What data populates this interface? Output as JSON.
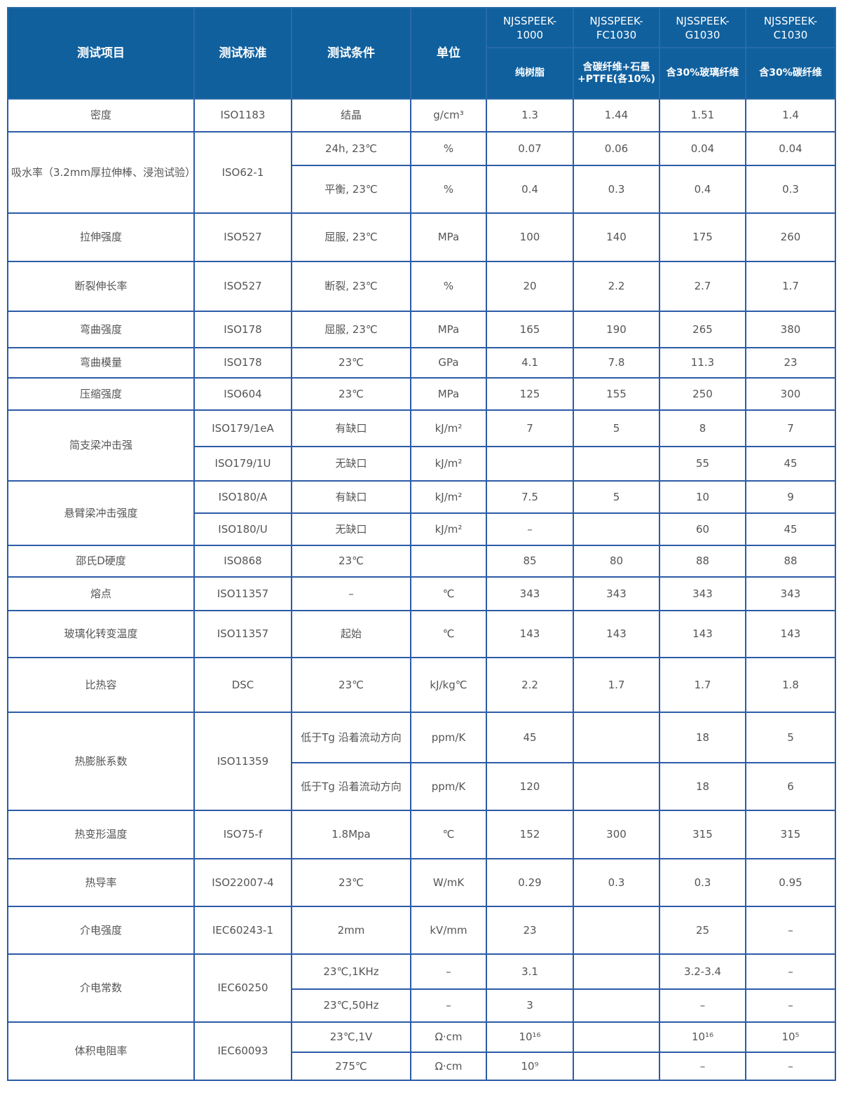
{
  "header": {
    "item": "测试项目",
    "standard": "测试标准",
    "condition": "测试条件",
    "unit": "单位",
    "products": [
      {
        "model": "NJSSPEEK-1000",
        "desc": "纯树脂"
      },
      {
        "model": "NJSSPEEK-FC1030",
        "desc": "含碳纤维+石墨+PTFE(各10%)"
      },
      {
        "model": "NJSSPEEK-G1030",
        "desc": "含30%玻璃纤维"
      },
      {
        "model": "NJSSPEEK-C1030",
        "desc": "含30%碳纤维"
      }
    ]
  },
  "colors": {
    "header_bg": "#10609e",
    "border": "#2c5ba6",
    "text": "#555555"
  },
  "rows": [
    {
      "item": "密度",
      "standard": "ISO1183",
      "sub": [
        {
          "cond": "结晶",
          "unit": "g/cm³",
          "vals": [
            "1.3",
            "1.44",
            "1.51",
            "1.4"
          ]
        }
      ]
    },
    {
      "item": "吸水率（3.2mm厚拉伸棒、浸泡试验）",
      "standard": "ISO62-1",
      "sub": [
        {
          "cond": "24h, 23℃",
          "unit": "%",
          "vals": [
            "0.07",
            "0.06",
            "0.04",
            "0.04"
          ]
        },
        {
          "cond": "平衡, 23℃",
          "unit": "%",
          "vals": [
            "0.4",
            "0.3",
            "0.4",
            "0.3"
          ]
        }
      ]
    },
    {
      "item": "拉伸强度",
      "standard": "ISO527",
      "sub": [
        {
          "cond": "屈服, 23℃",
          "unit": "MPa",
          "vals": [
            "100",
            "140",
            "175",
            "260"
          ]
        }
      ]
    },
    {
      "item": "断裂伸长率",
      "standard": "ISO527",
      "sub": [
        {
          "cond": "断裂, 23℃",
          "unit": "%",
          "vals": [
            "20",
            "2.2",
            "2.7",
            "1.7"
          ]
        }
      ]
    },
    {
      "item": "弯曲强度",
      "standard": "ISO178",
      "sub": [
        {
          "cond": "屈服, 23℃",
          "unit": "MPa",
          "vals": [
            "165",
            "190",
            "265",
            "380"
          ]
        }
      ]
    },
    {
      "item": "弯曲模量",
      "standard": "ISO178",
      "sub": [
        {
          "cond": "23℃",
          "unit": "GPa",
          "vals": [
            "4.1",
            "7.8",
            "11.3",
            "23"
          ]
        }
      ]
    },
    {
      "item": "压缩强度",
      "standard": "ISO604",
      "sub": [
        {
          "cond": "23℃",
          "unit": "MPa",
          "vals": [
            "125",
            "155",
            "250",
            "300"
          ]
        }
      ]
    },
    {
      "item": "简支梁冲击强",
      "standard": "",
      "sub": [
        {
          "std": "ISO179/1eA",
          "cond": "有缺口",
          "unit": "kJ/m²",
          "vals": [
            "7",
            "5",
            "8",
            "7"
          ]
        },
        {
          "std": "ISO179/1U",
          "cond": "无缺口",
          "unit": "kJ/m²",
          "vals": [
            "",
            "",
            "55",
            "45"
          ]
        }
      ]
    },
    {
      "item": "悬臂梁冲击强度",
      "standard": "",
      "sub": [
        {
          "std": "ISO180/A",
          "cond": "有缺口",
          "unit": "kJ/m²",
          "vals": [
            "7.5",
            "5",
            "10",
            "9"
          ]
        },
        {
          "std": "ISO180/U",
          "cond": "无缺口",
          "unit": "kJ/m²",
          "vals": [
            "–",
            "",
            "60",
            "45"
          ]
        }
      ]
    },
    {
      "item": "邵氏D硬度",
      "standard": "ISO868",
      "sub": [
        {
          "cond": "23℃",
          "unit": "",
          "vals": [
            "85",
            "80",
            "88",
            "88"
          ]
        }
      ]
    },
    {
      "item": "熔点",
      "standard": "ISO11357",
      "sub": [
        {
          "cond": "–",
          "unit": "℃",
          "vals": [
            "343",
            "343",
            "343",
            "343"
          ]
        }
      ]
    },
    {
      "item": "玻璃化转变温度",
      "standard": "ISO11357",
      "sub": [
        {
          "cond": "起始",
          "unit": "℃",
          "vals": [
            "143",
            "143",
            "143",
            "143"
          ]
        }
      ]
    },
    {
      "item": "比热容",
      "standard": "DSC",
      "sub": [
        {
          "cond": "23℃",
          "unit": "kJ/kg℃",
          "vals": [
            "2.2",
            "1.7",
            "1.7",
            "1.8"
          ]
        }
      ]
    },
    {
      "item": "热膨胀系数",
      "standard": "ISO11359",
      "sub": [
        {
          "cond": "低于Tg 沿着流动方向",
          "unit": "ppm/K",
          "vals": [
            "45",
            "",
            "18",
            "5"
          ]
        },
        {
          "cond": "低于Tg 沿着流动方向",
          "unit": "ppm/K",
          "vals": [
            "120",
            "",
            "18",
            "6"
          ]
        }
      ]
    },
    {
      "item": "热变形温度",
      "standard": "ISO75-f",
      "sub": [
        {
          "cond": "1.8Mpa",
          "unit": "℃",
          "vals": [
            "152",
            "300",
            "315",
            "315"
          ]
        }
      ]
    },
    {
      "item": "热导率",
      "standard": "ISO22007-4",
      "sub": [
        {
          "cond": "23℃",
          "unit": "W/mK",
          "vals": [
            "0.29",
            "0.3",
            "0.3",
            "0.95"
          ]
        }
      ]
    },
    {
      "item": "介电强度",
      "standard": "IEC60243-1",
      "sub": [
        {
          "cond": "2mm",
          "unit": "kV/mm",
          "vals": [
            "23",
            "",
            "25",
            "–"
          ]
        }
      ]
    },
    {
      "item": "介电常数",
      "standard": "IEC60250",
      "sub": [
        {
          "cond": "23℃,1KHz",
          "unit": "–",
          "vals": [
            "3.1",
            "",
            "3.2-3.4",
            "–"
          ]
        },
        {
          "cond": "23℃,50Hz",
          "unit": "–",
          "vals": [
            "3",
            "",
            "–",
            "–"
          ]
        }
      ]
    },
    {
      "item": "体积电阻率",
      "standard": "IEC60093",
      "sub": [
        {
          "cond": "23℃,1V",
          "unit": "Ω·cm",
          "vals": [
            "10¹⁶",
            "",
            "10¹⁶",
            "10⁵"
          ]
        },
        {
          "cond": "275℃",
          "unit": "Ω·cm",
          "vals": [
            "10⁹",
            "",
            "–",
            "–"
          ]
        }
      ]
    }
  ]
}
